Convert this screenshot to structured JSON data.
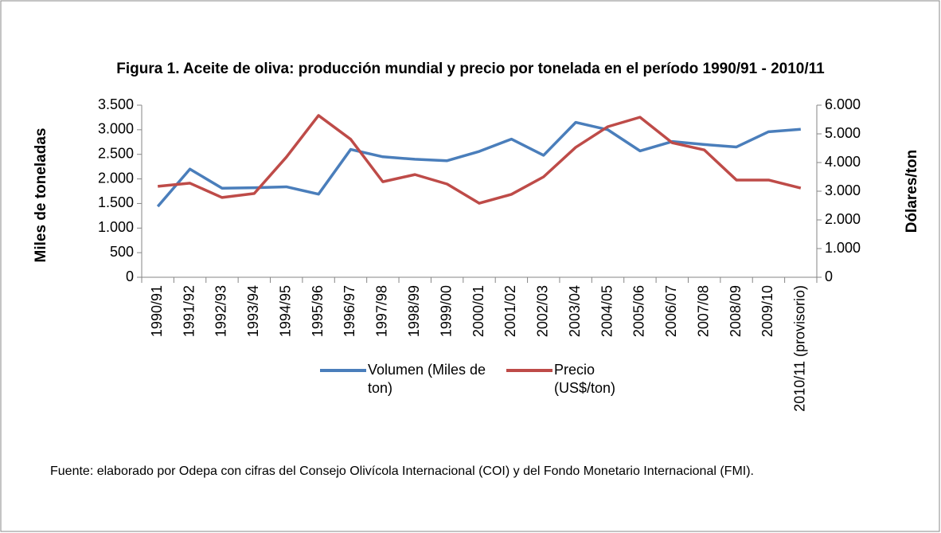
{
  "chart_data": {
    "type": "line",
    "title": "Figura 1. Aceite de oliva: producción mundial y precio por tonelada en el período 1990/91 - 2010/11",
    "ylabel": "Miles de toneladas",
    "y2label": "Dólares/ton",
    "note": "Fuente: elaborado por Odepa con cifras del Consejo Olivícola Internacional (COI) y del Fondo Monetario Internacional (FMI).",
    "categories": [
      "1990/91",
      "1991/92",
      "1992/93",
      "1993/94",
      "1994/95",
      "1995/96",
      "1996/97",
      "1997/98",
      "1998/99",
      "1999/00",
      "2000/01",
      "2001/02",
      "2002/03",
      "2003/04",
      "2004/05",
      "2005/06",
      "2006/07",
      "2007/08",
      "2008/09",
      "2009/10",
      "2010/11 (provisorio)"
    ],
    "series": [
      {
        "name": "Volumen (Miles de ton)",
        "color": "#4a7ebb",
        "axis": "y",
        "values": [
          1440,
          2200,
          1810,
          1820,
          1840,
          1690,
          2600,
          2450,
          2400,
          2370,
          2560,
          2810,
          2480,
          3150,
          3000,
          2570,
          2760,
          2700,
          2650,
          2960,
          3010
        ]
      },
      {
        "name": "Precio (US$/ton)",
        "color": "#be4b48",
        "axis": "y2",
        "values": [
          3170,
          3280,
          2780,
          2920,
          4190,
          5640,
          4810,
          3330,
          3580,
          3250,
          2580,
          2890,
          3500,
          4530,
          5250,
          5580,
          4690,
          4440,
          3390,
          3390,
          3110
        ]
      }
    ],
    "ylim": [
      0,
      3500
    ],
    "yticks": [
      0,
      500,
      {
        "value": 1000,
        "label": "1.000"
      },
      {
        "value": 1500,
        "label": "1.500"
      },
      {
        "value": 2000,
        "label": "2.000"
      },
      {
        "value": 2500,
        "label": "2.500"
      },
      {
        "value": 3000,
        "label": "3.000"
      },
      {
        "value": 3500,
        "label": "3.500"
      }
    ],
    "y2lim": [
      0,
      6000
    ],
    "y2ticks": [
      0,
      {
        "value": 1000,
        "label": "1.000"
      },
      {
        "value": 2000,
        "label": "2.000"
      },
      {
        "value": 3000,
        "label": "3.000"
      },
      {
        "value": 4000,
        "label": "4.000"
      },
      {
        "value": 5000,
        "label": "5.000"
      },
      {
        "value": 6000,
        "label": "6.000"
      }
    ],
    "grid": false,
    "legend": "bottom"
  }
}
